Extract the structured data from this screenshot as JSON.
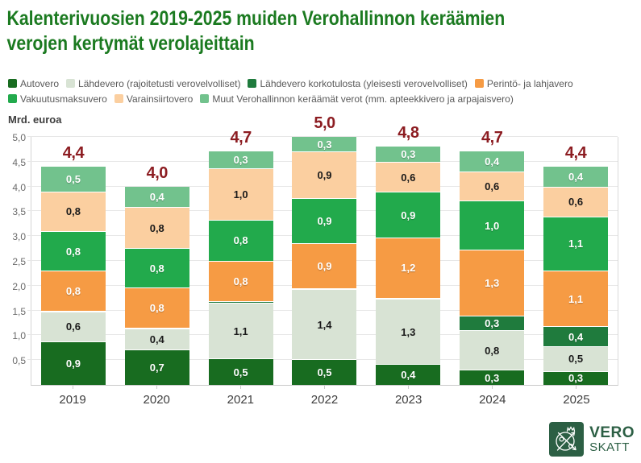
{
  "title_lines": [
    "Kalenterivuosien 2019-2025 muiden Verohallinnon keräämien",
    "verojen kertymät verolajeittain"
  ],
  "logo": {
    "line1": "VERO",
    "line2": "SKATT"
  },
  "colors": {
    "title_green": "#1b7a20",
    "total_red": "#8c1c21",
    "logo_green": "#2c5f44",
    "grid": "#e7e7e7",
    "axis_text": "#6b6b6b",
    "legend_text": "#5a5a5a"
  },
  "chart_data": {
    "type": "bar",
    "stacked": true,
    "title": "Kalenterivuosien 2019-2025 muiden Verohallinnon keräämien verojen kertymät verolajeittain",
    "ylabel": "Mrd. euroa",
    "xlabel": "",
    "ylim": [
      0,
      5.0
    ],
    "grid": true,
    "legend_position": "top",
    "categories": [
      "2019",
      "2020",
      "2021",
      "2022",
      "2023",
      "2024",
      "2025"
    ],
    "yticks": [
      "0,5",
      "1,0",
      "1,5",
      "2,0",
      "2,5",
      "3,0",
      "3,5",
      "4,0",
      "4,5",
      "5,0"
    ],
    "totals": [
      "4,4",
      "4,0",
      "4,7",
      "5,0",
      "4,8",
      "4,7",
      "4,4"
    ],
    "legend_rows": [
      [
        0,
        1,
        2,
        3
      ],
      [
        4,
        5,
        6
      ]
    ],
    "series": [
      {
        "name": "Autovero",
        "color": "#186c20",
        "label_color": "#ffffff",
        "values": [
          0.88,
          0.72,
          0.53,
          0.52,
          0.42,
          0.3,
          0.28
        ],
        "labels": [
          "0,9",
          "0,7",
          "0,5",
          "0,5",
          "0,4",
          "0,3",
          "0,3"
        ]
      },
      {
        "name": "Lähdevero (rajoitetusti verovelvolliset)",
        "color": "#d8e3d4",
        "label_color": "#1a1a1a",
        "values": [
          0.6,
          0.42,
          1.13,
          1.41,
          1.31,
          0.8,
          0.5
        ],
        "labels": [
          "0,6",
          "0,4",
          "1,1",
          "1,4",
          "1,3",
          "0,8",
          "0,5"
        ]
      },
      {
        "name": "Lähdevero korkotulosta (yleisesti verovelvolliset)",
        "color": "#1f7b3d",
        "label_color": "#ffffff",
        "values": [
          0.02,
          0.02,
          0.02,
          0.02,
          0.03,
          0.3,
          0.4
        ],
        "labels": [
          "",
          "",
          "",
          "",
          "",
          "0,3",
          "0,4"
        ]
      },
      {
        "name": "Perintö- ja lahjavero",
        "color": "#f69b44",
        "label_color": "#ffffff",
        "values": [
          0.8,
          0.8,
          0.82,
          0.9,
          1.21,
          1.32,
          1.12
        ],
        "labels": [
          "0,8",
          "0,8",
          "0,8",
          "0,9",
          "1,2",
          "1,3",
          "1,1"
        ]
      },
      {
        "name": "Vakuutusmaksuvero",
        "color": "#22aa4c",
        "label_color": "#ffffff",
        "values": [
          0.8,
          0.8,
          0.83,
          0.92,
          0.92,
          1.0,
          1.1
        ],
        "labels": [
          "0,8",
          "0,8",
          "0,8",
          "0,9",
          "0,9",
          "1,0",
          "1,1"
        ]
      },
      {
        "name": "Varainsiirtovero",
        "color": "#fbcfa0",
        "label_color": "#1a1a1a",
        "values": [
          0.8,
          0.82,
          1.03,
          0.93,
          0.61,
          0.58,
          0.6
        ],
        "labels": [
          "0,8",
          "0,8",
          "1,0",
          "0,9",
          "0,6",
          "0,6",
          "0,6"
        ]
      },
      {
        "name": "Muut Verohallinnon keräämät verot (mm. apteekkivero ja arpajaisvero)",
        "color": "#72c28d",
        "label_color": "#ffffff",
        "values": [
          0.5,
          0.42,
          0.34,
          0.3,
          0.3,
          0.4,
          0.4
        ],
        "labels": [
          "0,5",
          "0,4",
          "0,3",
          "0,3",
          "0,3",
          "0,4",
          "0,4"
        ]
      }
    ]
  }
}
